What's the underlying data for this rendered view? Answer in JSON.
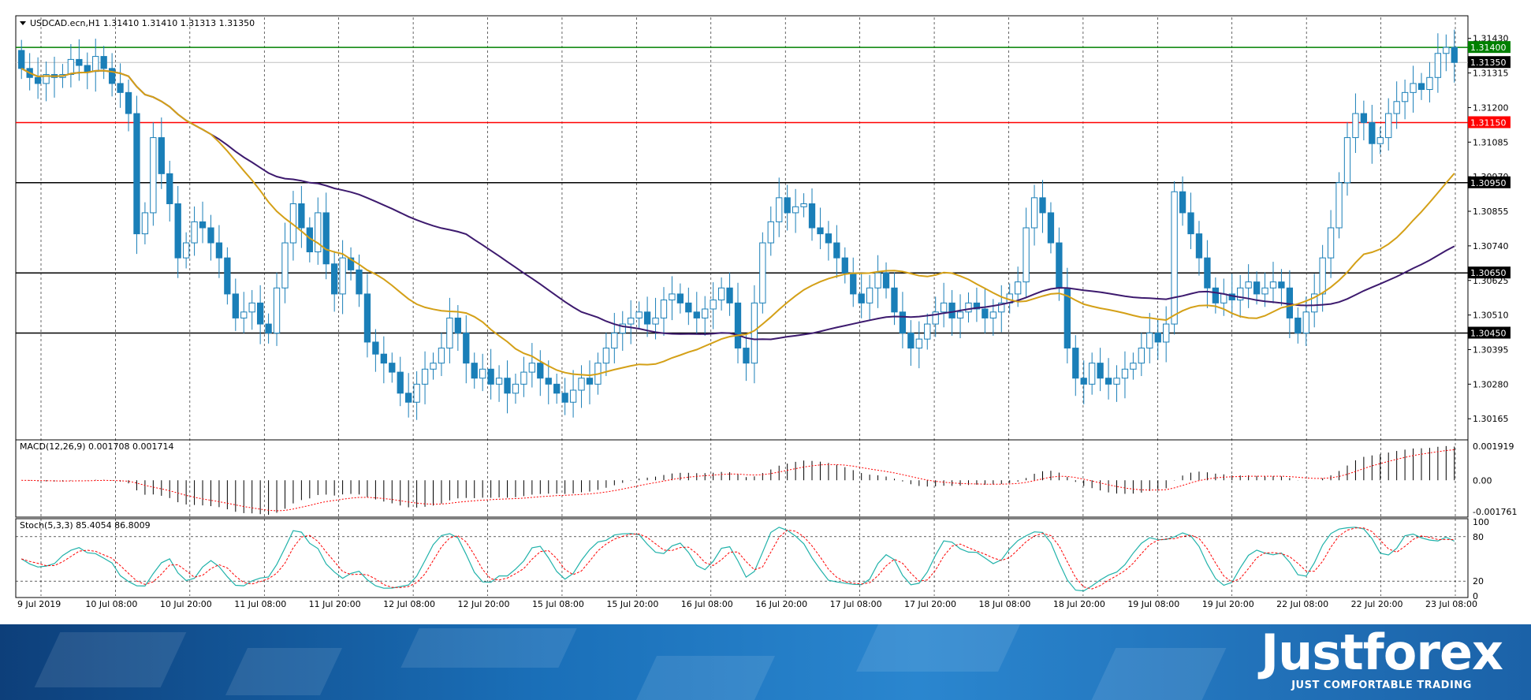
{
  "chart_data": [
    {
      "type": "candlestick",
      "title": "USDCAD.ecn,H1  1.31410 1.31410 1.31313 1.31350",
      "ylim": [
        1.301,
        1.315
      ],
      "y_ticks": [
        "1.31430",
        "1.31315",
        "1.31200",
        "1.31085",
        "1.30970",
        "1.30855",
        "1.30740",
        "1.30625",
        "1.30510",
        "1.30395",
        "1.30280",
        "1.30165"
      ],
      "x_ticks": [
        "9 Jul 2019",
        "10 Jul 08:00",
        "10 Jul 20:00",
        "11 Jul 08:00",
        "11 Jul 20:00",
        "12 Jul 08:00",
        "12 Jul 20:00",
        "15 Jul 08:00",
        "15 Jul 20:00",
        "16 Jul 08:00",
        "16 Jul 20:00",
        "17 Jul 08:00",
        "17 Jul 20:00",
        "18 Jul 08:00",
        "18 Jul 20:00",
        "19 Jul 08:00",
        "19 Jul 20:00",
        "22 Jul 08:00",
        "22 Jul 20:00",
        "23 Jul 08:00"
      ],
      "candle_closes": [
        1.3133,
        1.313,
        1.3128,
        1.3131,
        1.313,
        1.3131,
        1.3136,
        1.3134,
        1.3132,
        1.3137,
        1.3133,
        1.3128,
        1.3125,
        1.3118,
        1.3078,
        1.3085,
        1.311,
        1.3098,
        1.3088,
        1.307,
        1.3075,
        1.3082,
        1.308,
        1.3075,
        1.307,
        1.3058,
        1.305,
        1.3052,
        1.3055,
        1.3048,
        1.3045,
        1.306,
        1.3075,
        1.3088,
        1.308,
        1.3072,
        1.3085,
        1.3068,
        1.3058,
        1.307,
        1.3066,
        1.3058,
        1.3042,
        1.3038,
        1.3035,
        1.3032,
        1.3025,
        1.3022,
        1.3028,
        1.3033,
        1.3035,
        1.304,
        1.305,
        1.3045,
        1.3035,
        1.303,
        1.3033,
        1.3028,
        1.303,
        1.3025,
        1.3028,
        1.3032,
        1.3035,
        1.303,
        1.3028,
        1.3025,
        1.3022,
        1.3026,
        1.303,
        1.3028,
        1.3035,
        1.304,
        1.3045,
        1.3048,
        1.305,
        1.3052,
        1.3048,
        1.305,
        1.3056,
        1.3058,
        1.3055,
        1.3052,
        1.305,
        1.3053,
        1.3056,
        1.306,
        1.3055,
        1.304,
        1.3035,
        1.3055,
        1.3075,
        1.3082,
        1.309,
        1.3085,
        1.3087,
        1.3088,
        1.308,
        1.3078,
        1.3075,
        1.307,
        1.3065,
        1.3058,
        1.3055,
        1.306,
        1.3065,
        1.306,
        1.3052,
        1.3045,
        1.304,
        1.3043,
        1.3048,
        1.3052,
        1.3055,
        1.305,
        1.3052,
        1.3055,
        1.3053,
        1.305,
        1.3052,
        1.3055,
        1.3058,
        1.3062,
        1.308,
        1.309,
        1.3085,
        1.3075,
        1.306,
        1.304,
        1.303,
        1.3028,
        1.3035,
        1.303,
        1.3028,
        1.303,
        1.3033,
        1.3035,
        1.304,
        1.3045,
        1.3042,
        1.3048,
        1.3092,
        1.3085,
        1.3078,
        1.307,
        1.306,
        1.3055,
        1.3058,
        1.3056,
        1.306,
        1.3062,
        1.3058,
        1.306,
        1.3062,
        1.306,
        1.305,
        1.3045,
        1.3052,
        1.3058,
        1.307,
        1.308,
        1.3095,
        1.311,
        1.3118,
        1.3115,
        1.3108,
        1.311,
        1.3118,
        1.3122,
        1.3125,
        1.3128,
        1.3126,
        1.313,
        1.3138,
        1.314,
        1.3135
      ]
    },
    {
      "type": "line",
      "title": "MACD(12,26,9) 0.001708 0.001714",
      "y_ticks": [
        "0.001919",
        "0.00",
        "-0.001761"
      ],
      "ylim": [
        -0.0019,
        0.0021
      ]
    },
    {
      "type": "line",
      "title": "Stoch(5,3,3) 85.4054 86.8009",
      "y_ticks": [
        "100",
        "80",
        "20",
        "0"
      ],
      "ylim": [
        0,
        100
      ]
    }
  ],
  "price_tags": [
    {
      "value": 1.314,
      "label": "1.31400",
      "color": "#008000"
    },
    {
      "value": 1.3135,
      "label": "1.31350",
      "color": "#000000"
    },
    {
      "value": 1.3115,
      "label": "1.31150",
      "color": "#ff0000"
    },
    {
      "value": 1.3095,
      "label": "1.30950",
      "color": "#000000"
    },
    {
      "value": 1.3065,
      "label": "1.30650",
      "color": "#000000"
    },
    {
      "value": 1.3045,
      "label": "1.30450",
      "color": "#000000"
    }
  ],
  "colors": {
    "bull": "#1a7fb8",
    "bear": "#1a7fb8",
    "ma_fast": "#d4a017",
    "ma_slow": "#3d1a6e"
  },
  "brand": {
    "name": "Justforex",
    "tagline": "JUST COMFORTABLE TRADING"
  }
}
